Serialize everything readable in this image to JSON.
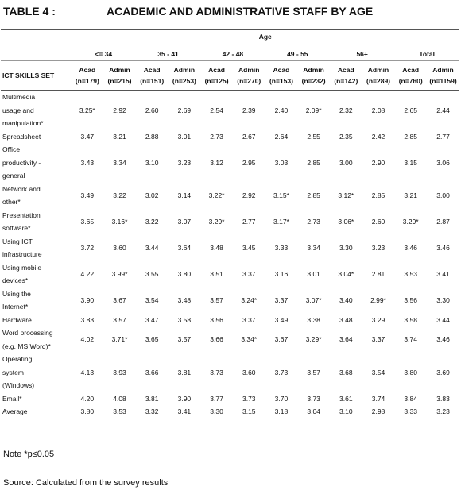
{
  "header": {
    "number": "TABLE 4 :",
    "title": "ACADEMIC AND ADMINISTRATIVE STAFF BY AGE"
  },
  "table": {
    "span_header": "Age",
    "row_header": "ICT SKILLS SET",
    "groups": [
      "<= 34",
      "35 - 41",
      "42 - 48",
      "49 - 55",
      "56+",
      "Total"
    ],
    "subheaders": [
      [
        "Acad",
        "(n=179)"
      ],
      [
        "Admin",
        "(n=215)"
      ],
      [
        "Acad",
        "(n=151)"
      ],
      [
        "Admin",
        "(n=253)"
      ],
      [
        "Acad",
        "(n=125)"
      ],
      [
        "Admin",
        "(n=270)"
      ],
      [
        "Acad",
        "(n=153)"
      ],
      [
        "Admin",
        "(n=232)"
      ],
      [
        "Acad",
        "(n=142)"
      ],
      [
        "Admin",
        "(n=289)"
      ],
      [
        "Acad",
        "(n=760)"
      ],
      [
        "Admin",
        "(n=1159)"
      ]
    ],
    "rows": [
      {
        "label": [
          "Multimedia",
          "usage and",
          "manipulation*"
        ],
        "values": [
          "3.25*",
          "2.92",
          "2.60",
          "2.69",
          "2.54",
          "2.39",
          "2.40",
          "2.09*",
          "2.32",
          "2.08",
          "2.65",
          "2.44"
        ]
      },
      {
        "label": [
          "Spreadsheet"
        ],
        "values": [
          "3.47",
          "3.21",
          "2.88",
          "3.01",
          "2.73",
          "2.67",
          "2.64",
          "2.55",
          "2.35",
          "2.42",
          "2.85",
          "2.77"
        ]
      },
      {
        "label": [
          "Office",
          "productivity -",
          "general"
        ],
        "values": [
          "3.43",
          "3.34",
          "3.10",
          "3.23",
          "3.12",
          "2.95",
          "3.03",
          "2.85",
          "3.00",
          "2.90",
          "3.15",
          "3.06"
        ]
      },
      {
        "label": [
          "Network and",
          "other*"
        ],
        "values": [
          "3.49",
          "3.22",
          "3.02",
          "3.14",
          "3.22*",
          "2.92",
          "3.15*",
          "2.85",
          "3.12*",
          "2.85",
          "3.21",
          "3.00"
        ]
      },
      {
        "label": [
          "Presentation",
          "software*"
        ],
        "values": [
          "3.65",
          "3.16*",
          "3.22",
          "3.07",
          "3.29*",
          "2.77",
          "3.17*",
          "2.73",
          "3.06*",
          "2.60",
          "3.29*",
          "2.87"
        ]
      },
      {
        "label": [
          "Using ICT",
          "infrastructure"
        ],
        "values": [
          "3.72",
          "3.60",
          "3.44",
          "3.64",
          "3.48",
          "3.45",
          "3.33",
          "3.34",
          "3.30",
          "3.23",
          "3.46",
          "3.46"
        ]
      },
      {
        "label": [
          "Using mobile",
          "devices*"
        ],
        "values": [
          "4.22",
          "3.99*",
          "3.55",
          "3.80",
          "3.51",
          "3.37",
          "3.16",
          "3.01",
          "3.04*",
          "2.81",
          "3.53",
          "3.41"
        ]
      },
      {
        "label": [
          "Using the",
          "Internet*"
        ],
        "values": [
          "3.90",
          "3.67",
          "3.54",
          "3.48",
          "3.57",
          "3.24*",
          "3.37",
          "3.07*",
          "3.40",
          "2.99*",
          "3.56",
          "3.30"
        ]
      },
      {
        "label": [
          "Hardware"
        ],
        "values": [
          "3.83",
          "3.57",
          "3.47",
          "3.58",
          "3.56",
          "3.37",
          "3.49",
          "3.38",
          "3.48",
          "3.29",
          "3.58",
          "3.44"
        ]
      },
      {
        "label": [
          "Word processing",
          "(e.g. MS Word)*"
        ],
        "values": [
          "4.02",
          "3.71*",
          "3.65",
          "3.57",
          "3.66",
          "3.34*",
          "3.67",
          "3.29*",
          "3.64",
          "3.37",
          "3.74",
          "3.46"
        ]
      },
      {
        "label": [
          "Operating",
          "system",
          "(Windows)"
        ],
        "values": [
          "4.13",
          "3.93",
          "3.66",
          "3.81",
          "3.73",
          "3.60",
          "3.73",
          "3.57",
          "3.68",
          "3.54",
          "3.80",
          "3.69"
        ]
      },
      {
        "label": [
          "Email*"
        ],
        "values": [
          "4.20",
          "4.08",
          "3.81",
          "3.90",
          "3.77",
          "3.73",
          "3.70",
          "3.73",
          "3.61",
          "3.74",
          "3.84",
          "3.83"
        ]
      },
      {
        "label": [
          "Average"
        ],
        "values": [
          "3.80",
          "3.53",
          "3.32",
          "3.41",
          "3.30",
          "3.15",
          "3.18",
          "3.04",
          "3.10",
          "2.98",
          "3.33",
          "3.23"
        ]
      }
    ]
  },
  "footer": {
    "note": "Note *p≤0.05",
    "source": "Source: Calculated from the survey results"
  }
}
